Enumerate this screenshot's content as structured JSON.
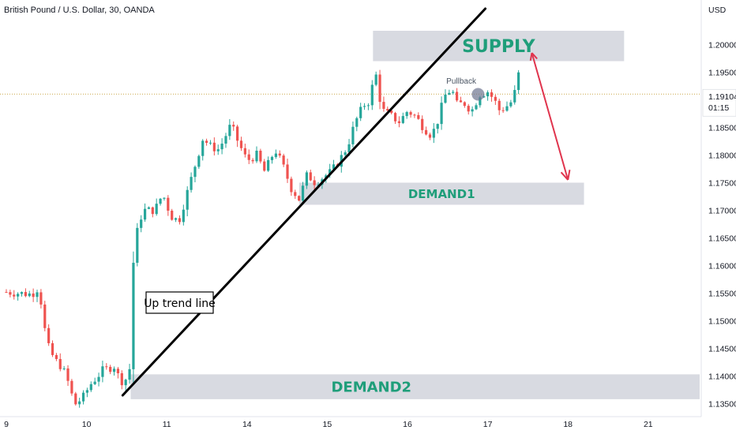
{
  "chart_data": {
    "type": "candlestick",
    "title": "British Pound / U.S. Dollar, 30, OANDA",
    "currency": "USD",
    "ylim": [
      1.1335,
      1.2075
    ],
    "x_ticks": [
      {
        "label": "9",
        "day": 0
      },
      {
        "label": "10",
        "day": 1
      },
      {
        "label": "11",
        "day": 2
      },
      {
        "label": "14",
        "day": 3
      },
      {
        "label": "15",
        "day": 4
      },
      {
        "label": "16",
        "day": 5
      },
      {
        "label": "17",
        "day": 6
      },
      {
        "label": "18",
        "day": 7
      },
      {
        "label": "21",
        "day": 8
      }
    ],
    "y_ticks": [
      "1.20000",
      "1.19500",
      "1.18500",
      "1.18000",
      "1.17500",
      "1.17000",
      "1.16500",
      "1.16000",
      "1.15500",
      "1.15000",
      "1.14500",
      "1.14000",
      "1.13500"
    ],
    "last_price": {
      "value": "1.19104",
      "countdown": "01:15"
    },
    "close_path": [
      [
        0.0,
        1.1552
      ],
      [
        0.15,
        1.155
      ],
      [
        0.32,
        1.1548
      ],
      [
        0.4,
        1.156
      ],
      [
        0.45,
        1.152
      ],
      [
        0.5,
        1.146
      ],
      [
        0.6,
        1.143
      ],
      [
        0.7,
        1.1415
      ],
      [
        0.78,
        1.1385
      ],
      [
        0.85,
        1.1348
      ],
      [
        0.95,
        1.136
      ],
      [
        1.05,
        1.1385
      ],
      [
        1.2,
        1.141
      ],
      [
        1.35,
        1.1418
      ],
      [
        1.42,
        1.139
      ],
      [
        1.5,
        1.1395
      ],
      [
        1.55,
        1.142
      ],
      [
        1.58,
        1.16
      ],
      [
        1.62,
        1.1655
      ],
      [
        1.7,
        1.17
      ],
      [
        1.85,
        1.17
      ],
      [
        1.95,
        1.173
      ],
      [
        2.05,
        1.169
      ],
      [
        2.15,
        1.168
      ],
      [
        2.25,
        1.173
      ],
      [
        2.35,
        1.178
      ],
      [
        2.45,
        1.183
      ],
      [
        2.55,
        1.1815
      ],
      [
        2.65,
        1.181
      ],
      [
        2.8,
        1.1855
      ],
      [
        2.9,
        1.182
      ],
      [
        3.0,
        1.179
      ],
      [
        3.12,
        1.18
      ],
      [
        3.22,
        1.177
      ],
      [
        3.35,
        1.181
      ],
      [
        3.45,
        1.178
      ],
      [
        3.55,
        1.174
      ],
      [
        3.65,
        1.172
      ],
      [
        3.75,
        1.1765
      ],
      [
        3.85,
        1.175
      ],
      [
        3.95,
        1.176
      ],
      [
        4.05,
        1.177
      ],
      [
        4.15,
        1.179
      ],
      [
        4.25,
        1.1815
      ],
      [
        4.35,
        1.186
      ],
      [
        4.45,
        1.189
      ],
      [
        4.55,
        1.19
      ],
      [
        4.58,
        1.197
      ],
      [
        4.65,
        1.1905
      ],
      [
        4.7,
        1.188
      ],
      [
        4.8,
        1.187
      ],
      [
        4.9,
        1.186
      ],
      [
        5.0,
        1.188
      ],
      [
        5.1,
        1.187
      ],
      [
        5.2,
        1.185
      ],
      [
        5.3,
        1.1835
      ],
      [
        5.4,
        1.187
      ],
      [
        5.45,
        1.1905
      ],
      [
        5.55,
        1.192
      ],
      [
        5.62,
        1.189
      ],
      [
        5.7,
        1.1895
      ],
      [
        5.8,
        1.188
      ],
      [
        5.9,
        1.191
      ],
      [
        6.0,
        1.1915
      ],
      [
        6.08,
        1.19
      ],
      [
        6.15,
        1.188
      ],
      [
        6.25,
        1.189
      ],
      [
        6.32,
        1.19
      ],
      [
        6.38,
        1.195
      ],
      [
        6.42,
        1.191
      ]
    ],
    "zones": [
      {
        "label": "SUPPLY",
        "price_top": 1.2025,
        "price_bottom": 1.197,
        "day_start": 4.57,
        "day_end": 7.7
      },
      {
        "label": "DEMAND1",
        "price_top": 1.175,
        "price_bottom": 1.171,
        "day_start": 3.65,
        "day_end": 7.2
      },
      {
        "label": "DEMAND2",
        "price_top": 1.1403,
        "price_bottom": 1.1358,
        "day_start": 1.55,
        "day_end": 8.7
      }
    ],
    "trend_line": {
      "label": "Up trend line",
      "start": {
        "day": 1.45,
        "price": 1.1365
      },
      "end": {
        "day": 5.97,
        "price": 1.2065
      }
    },
    "annotations": [
      {
        "type": "text",
        "text": "Pullback",
        "day": 5.67,
        "price": 1.1935
      },
      {
        "type": "marker",
        "day": 5.88,
        "price": 1.191
      }
    ],
    "projection_arrow": {
      "from": {
        "day": 6.55,
        "price": 1.1985
      },
      "to": {
        "day": 7.0,
        "price": 1.1755
      }
    },
    "colors": {
      "up": "#26a69a",
      "down": "#ef5350",
      "zone": "#d1d4dc",
      "zone_label": "#1f9e7a",
      "trend_line": "#000000",
      "arrow": "#e0344d",
      "price_line": "#c9a646",
      "marker": "#6e7590"
    }
  }
}
